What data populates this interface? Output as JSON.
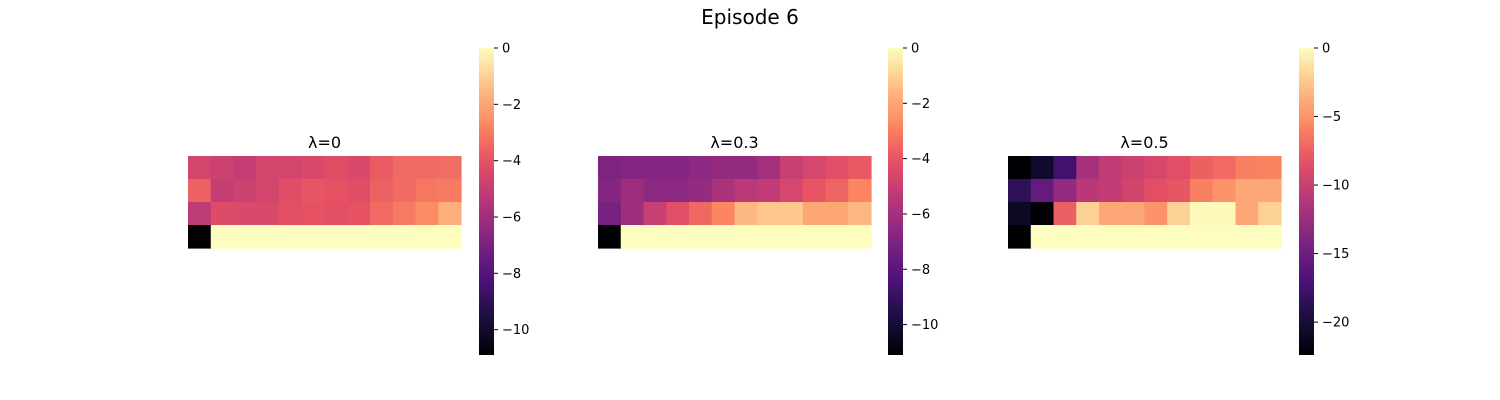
{
  "figure": {
    "title": "Episode 6"
  },
  "chart_data": [
    {
      "type": "heatmap",
      "title": "λ=0",
      "rows": 4,
      "cols": 12,
      "vmin": -10.9,
      "vmax": 0,
      "colorbar_ticks": [
        0,
        -2,
        -4,
        -6,
        -8,
        -10
      ],
      "colorbar_tick_labels": [
        "0",
        "−2",
        "−4",
        "−6",
        "−8",
        "−10"
      ],
      "values": [
        [
          -4.6,
          -4.8,
          -5.0,
          -4.6,
          -4.6,
          -4.4,
          -4.2,
          -4.4,
          -3.8,
          -3.4,
          -3.4,
          -3.3
        ],
        [
          -3.6,
          -5.0,
          -4.8,
          -4.6,
          -4.2,
          -3.9,
          -4.0,
          -4.2,
          -3.6,
          -3.4,
          -3.1,
          -3.0
        ],
        [
          -5.2,
          -4.3,
          -4.4,
          -4.4,
          -4.1,
          -4.0,
          -4.1,
          -4.0,
          -3.4,
          -3.0,
          -2.6,
          -1.8
        ],
        [
          -10.9,
          0,
          0,
          0,
          0,
          0,
          0,
          0,
          0,
          0,
          0,
          0
        ]
      ]
    },
    {
      "type": "heatmap",
      "title": "λ=0.3",
      "rows": 4,
      "cols": 12,
      "vmin": -11.1,
      "vmax": 0,
      "colorbar_ticks": [
        0,
        -2,
        -4,
        -6,
        -8,
        -10
      ],
      "colorbar_tick_labels": [
        "0",
        "−2",
        "−4",
        "−6",
        "−8",
        "−10"
      ],
      "values": [
        [
          -7.0,
          -6.8,
          -6.8,
          -6.8,
          -6.6,
          -6.4,
          -6.4,
          -6.0,
          -5.0,
          -4.6,
          -4.2,
          -3.9
        ],
        [
          -6.8,
          -6.2,
          -6.6,
          -6.6,
          -6.4,
          -5.8,
          -5.4,
          -5.2,
          -4.6,
          -4.0,
          -3.6,
          -2.8
        ],
        [
          -7.2,
          -6.2,
          -5.0,
          -4.2,
          -3.5,
          -2.8,
          -1.6,
          -1.2,
          -1.2,
          -2.0,
          -2.0,
          -1.6
        ],
        [
          -11.1,
          0,
          0,
          0,
          0,
          0,
          0,
          0,
          0,
          0,
          0,
          0
        ]
      ]
    },
    {
      "type": "heatmap",
      "title": "λ=0.5",
      "rows": 4,
      "cols": 12,
      "vmin": -22.4,
      "vmax": 0,
      "colorbar_ticks": [
        0,
        -5,
        -10,
        -15,
        -20
      ],
      "colorbar_tick_labels": [
        "0",
        "−5",
        "−10",
        "−15",
        "−20"
      ],
      "values": [
        [
          -22.4,
          -20.5,
          -17.5,
          -12.0,
          -10.5,
          -9.8,
          -9.2,
          -8.5,
          -7.5,
          -7.0,
          -6.0,
          -5.8
        ],
        [
          -18.5,
          -15.5,
          -13.0,
          -11.0,
          -10.5,
          -9.5,
          -8.5,
          -8.0,
          -6.0,
          -5.0,
          -4.0,
          -4.0
        ],
        [
          -21.0,
          -22.4,
          -7.5,
          -2.0,
          -4.0,
          -4.0,
          -5.0,
          -2.0,
          -0.2,
          -0.2,
          -4.0,
          -2.0
        ],
        [
          -22.4,
          0,
          0,
          0,
          0,
          0,
          0,
          0,
          0,
          0,
          0,
          0
        ]
      ]
    }
  ]
}
